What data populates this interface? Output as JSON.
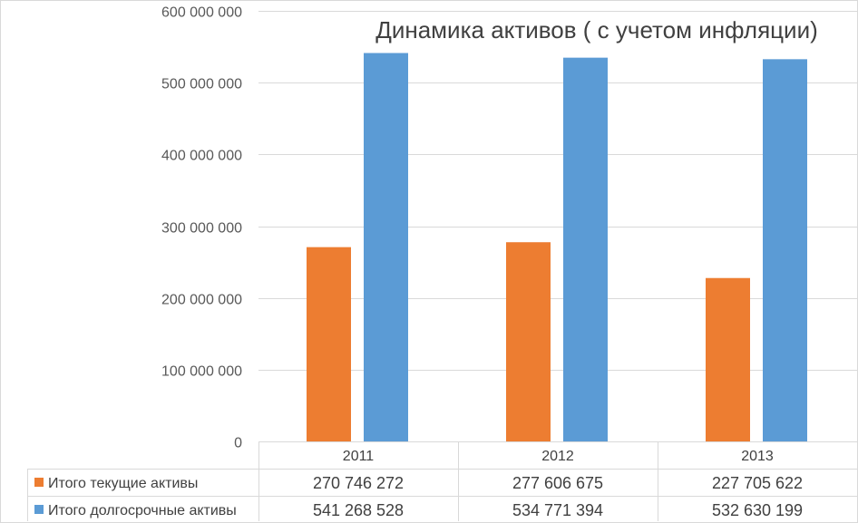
{
  "chart_data": {
    "type": "bar",
    "title": "Динамика активов ( с учетом инфляции)",
    "categories": [
      "2011",
      "2012",
      "2013"
    ],
    "series": [
      {
        "name": "Итого текущие активы",
        "color": "#ED7D31",
        "values": [
          270746272,
          277606675,
          227705622
        ],
        "value_labels": [
          "270 746 272",
          "277 606 675",
          "227 705 622"
        ]
      },
      {
        "name": "Итого долгосрочные активы",
        "color": "#5B9BD5",
        "values": [
          541268528,
          534771394,
          532630199
        ],
        "value_labels": [
          "541 268 528",
          "534 771 394",
          "532 630 199"
        ]
      }
    ],
    "ylim": [
      0,
      600000000
    ],
    "y_ticks": [
      0,
      100000000,
      200000000,
      300000000,
      400000000,
      500000000,
      600000000
    ],
    "y_tick_labels": [
      "0",
      "100 000 000",
      "200 000 000",
      "300 000 000",
      "400 000 000",
      "500 000 000",
      "600 000 000"
    ],
    "grid": true,
    "data_table": true,
    "legend_placement": "data table rows"
  }
}
